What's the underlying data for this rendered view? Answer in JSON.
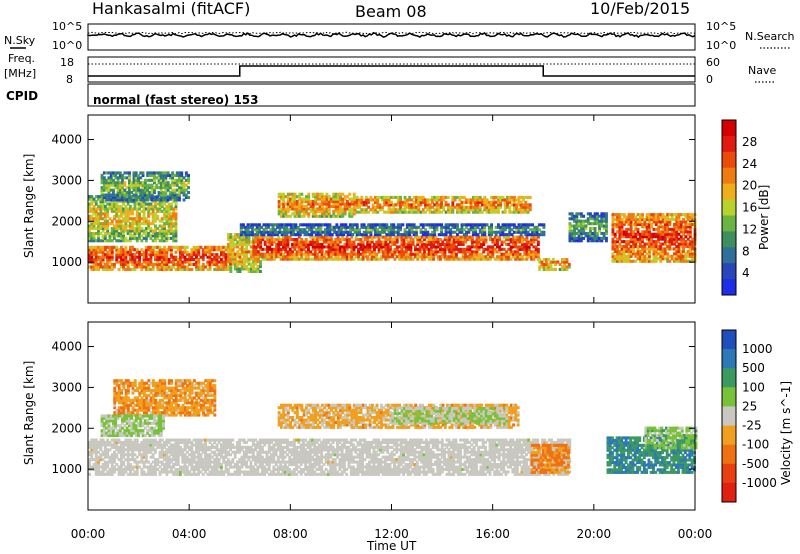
{
  "header": {
    "station": "Hankasalmi (fitACF)",
    "beam": "Beam 08",
    "date": "10/Feb/2015"
  },
  "noise_panel": {
    "left_label": "N.Sky",
    "left_ticks": [
      "10^5",
      "10^0"
    ],
    "right_ticks": [
      "10^5",
      "10^0"
    ],
    "right_label": "N.Search",
    "right_label_style": "dotted"
  },
  "freq_panel": {
    "left_label": [
      "Freq.",
      "[MHz]"
    ],
    "left_ticks": [
      "18",
      "8"
    ],
    "right_ticks": [
      "60",
      "0"
    ],
    "right_label": "Nave",
    "right_label_style": "dotted"
  },
  "cpid_panel": {
    "label": "CPID",
    "value": "normal (fast stereo) 153"
  },
  "colors": {
    "power_scale": [
      "#1f2ee6",
      "#2747b8",
      "#2f6f9a",
      "#3f8f5e",
      "#69b443",
      "#b8d32e",
      "#f0ad1c",
      "#f07b12",
      "#ea4a0a",
      "#e01a10",
      "#d40000"
    ],
    "velocity_scale": [
      "#1f4fbd",
      "#2d79b8",
      "#3c9a5e",
      "#78c23a",
      "#c8c8c0",
      "#f0a01e",
      "#f07014",
      "#e84010",
      "#e02010"
    ],
    "ground_scatter": "#c8c8c0"
  },
  "chart_data": [
    {
      "type": "heatmap",
      "title": "",
      "xlabel": "Time UT",
      "ylabel": "Slant Range [km]",
      "xlim": [
        "00:00",
        "24:00"
      ],
      "ylim": [
        0,
        4600
      ],
      "x_ticks": [
        "00:00",
        "04:00",
        "08:00",
        "12:00",
        "16:00",
        "20:00",
        "00:00"
      ],
      "y_ticks": [
        "1000",
        "2000",
        "3000",
        "4000"
      ],
      "colorbar_label": "Power [dB]",
      "colorbar_ticks": [
        "28",
        "24",
        "20",
        "16",
        "12",
        "8",
        "4"
      ],
      "colorbar_range": [
        0,
        30
      ],
      "bands": [
        {
          "t0": 0.0,
          "t1": 5.6,
          "r0": 800,
          "r1": 1400,
          "level": 26
        },
        {
          "t0": 0.0,
          "t1": 3.5,
          "r0": 1500,
          "r1": 2600,
          "level": 18
        },
        {
          "t0": 0.5,
          "t1": 4.0,
          "r0": 2500,
          "r1": 3200,
          "level": 14
        },
        {
          "t0": 5.5,
          "t1": 6.8,
          "r0": 750,
          "r1": 1700,
          "level": 20
        },
        {
          "t0": 6.5,
          "t1": 17.8,
          "r0": 1050,
          "r1": 1650,
          "level": 27
        },
        {
          "t0": 6.0,
          "t1": 18.0,
          "r0": 1650,
          "r1": 1900,
          "level": 10
        },
        {
          "t0": 7.5,
          "t1": 10.5,
          "r0": 2100,
          "r1": 2700,
          "level": 22
        },
        {
          "t0": 10.5,
          "t1": 17.5,
          "r0": 2200,
          "r1": 2600,
          "level": 23
        },
        {
          "t0": 17.8,
          "t1": 19.0,
          "r0": 800,
          "r1": 1100,
          "level": 22
        },
        {
          "t0": 19.0,
          "t1": 20.5,
          "r0": 1500,
          "r1": 2200,
          "level": 12
        },
        {
          "t0": 20.7,
          "t1": 24.0,
          "r0": 1000,
          "r1": 2200,
          "level": 26
        }
      ]
    },
    {
      "type": "heatmap",
      "title": "",
      "xlabel": "Time UT",
      "ylabel": "Slant Range [km]",
      "xlim": [
        "00:00",
        "24:00"
      ],
      "ylim": [
        0,
        4600
      ],
      "x_ticks": [
        "00:00",
        "04:00",
        "08:00",
        "12:00",
        "16:00",
        "20:00",
        "00:00"
      ],
      "y_ticks": [
        "1000",
        "2000",
        "3000",
        "4000"
      ],
      "colorbar_label": "Velocity [m s^-1]",
      "colorbar_ticks": [
        "1000",
        "500",
        "100",
        "25",
        "-25",
        "-100",
        "-500",
        "-1000"
      ],
      "colorbar_range": [
        -1000,
        1000
      ],
      "bands": [
        {
          "t0": 0.0,
          "t1": 19.0,
          "r0": 850,
          "r1": 1750,
          "level": 0,
          "ground": true
        },
        {
          "t0": 1.0,
          "t1": 5.0,
          "r0": 2300,
          "r1": 3200,
          "level": -300
        },
        {
          "t0": 0.5,
          "t1": 3.0,
          "r0": 1800,
          "r1": 2300,
          "level": 150
        },
        {
          "t0": 7.5,
          "t1": 17.0,
          "r0": 2000,
          "r1": 2600,
          "level": -200
        },
        {
          "t0": 12.0,
          "t1": 16.5,
          "r0": 2100,
          "r1": 2500,
          "level": 120
        },
        {
          "t0": 17.5,
          "t1": 19.0,
          "r0": 900,
          "r1": 1600,
          "level": -400
        },
        {
          "t0": 20.5,
          "t1": 24.0,
          "r0": 900,
          "r1": 1800,
          "level": 600
        },
        {
          "t0": 22.0,
          "t1": 24.0,
          "r0": 1500,
          "r1": 2000,
          "level": 250
        }
      ]
    }
  ]
}
